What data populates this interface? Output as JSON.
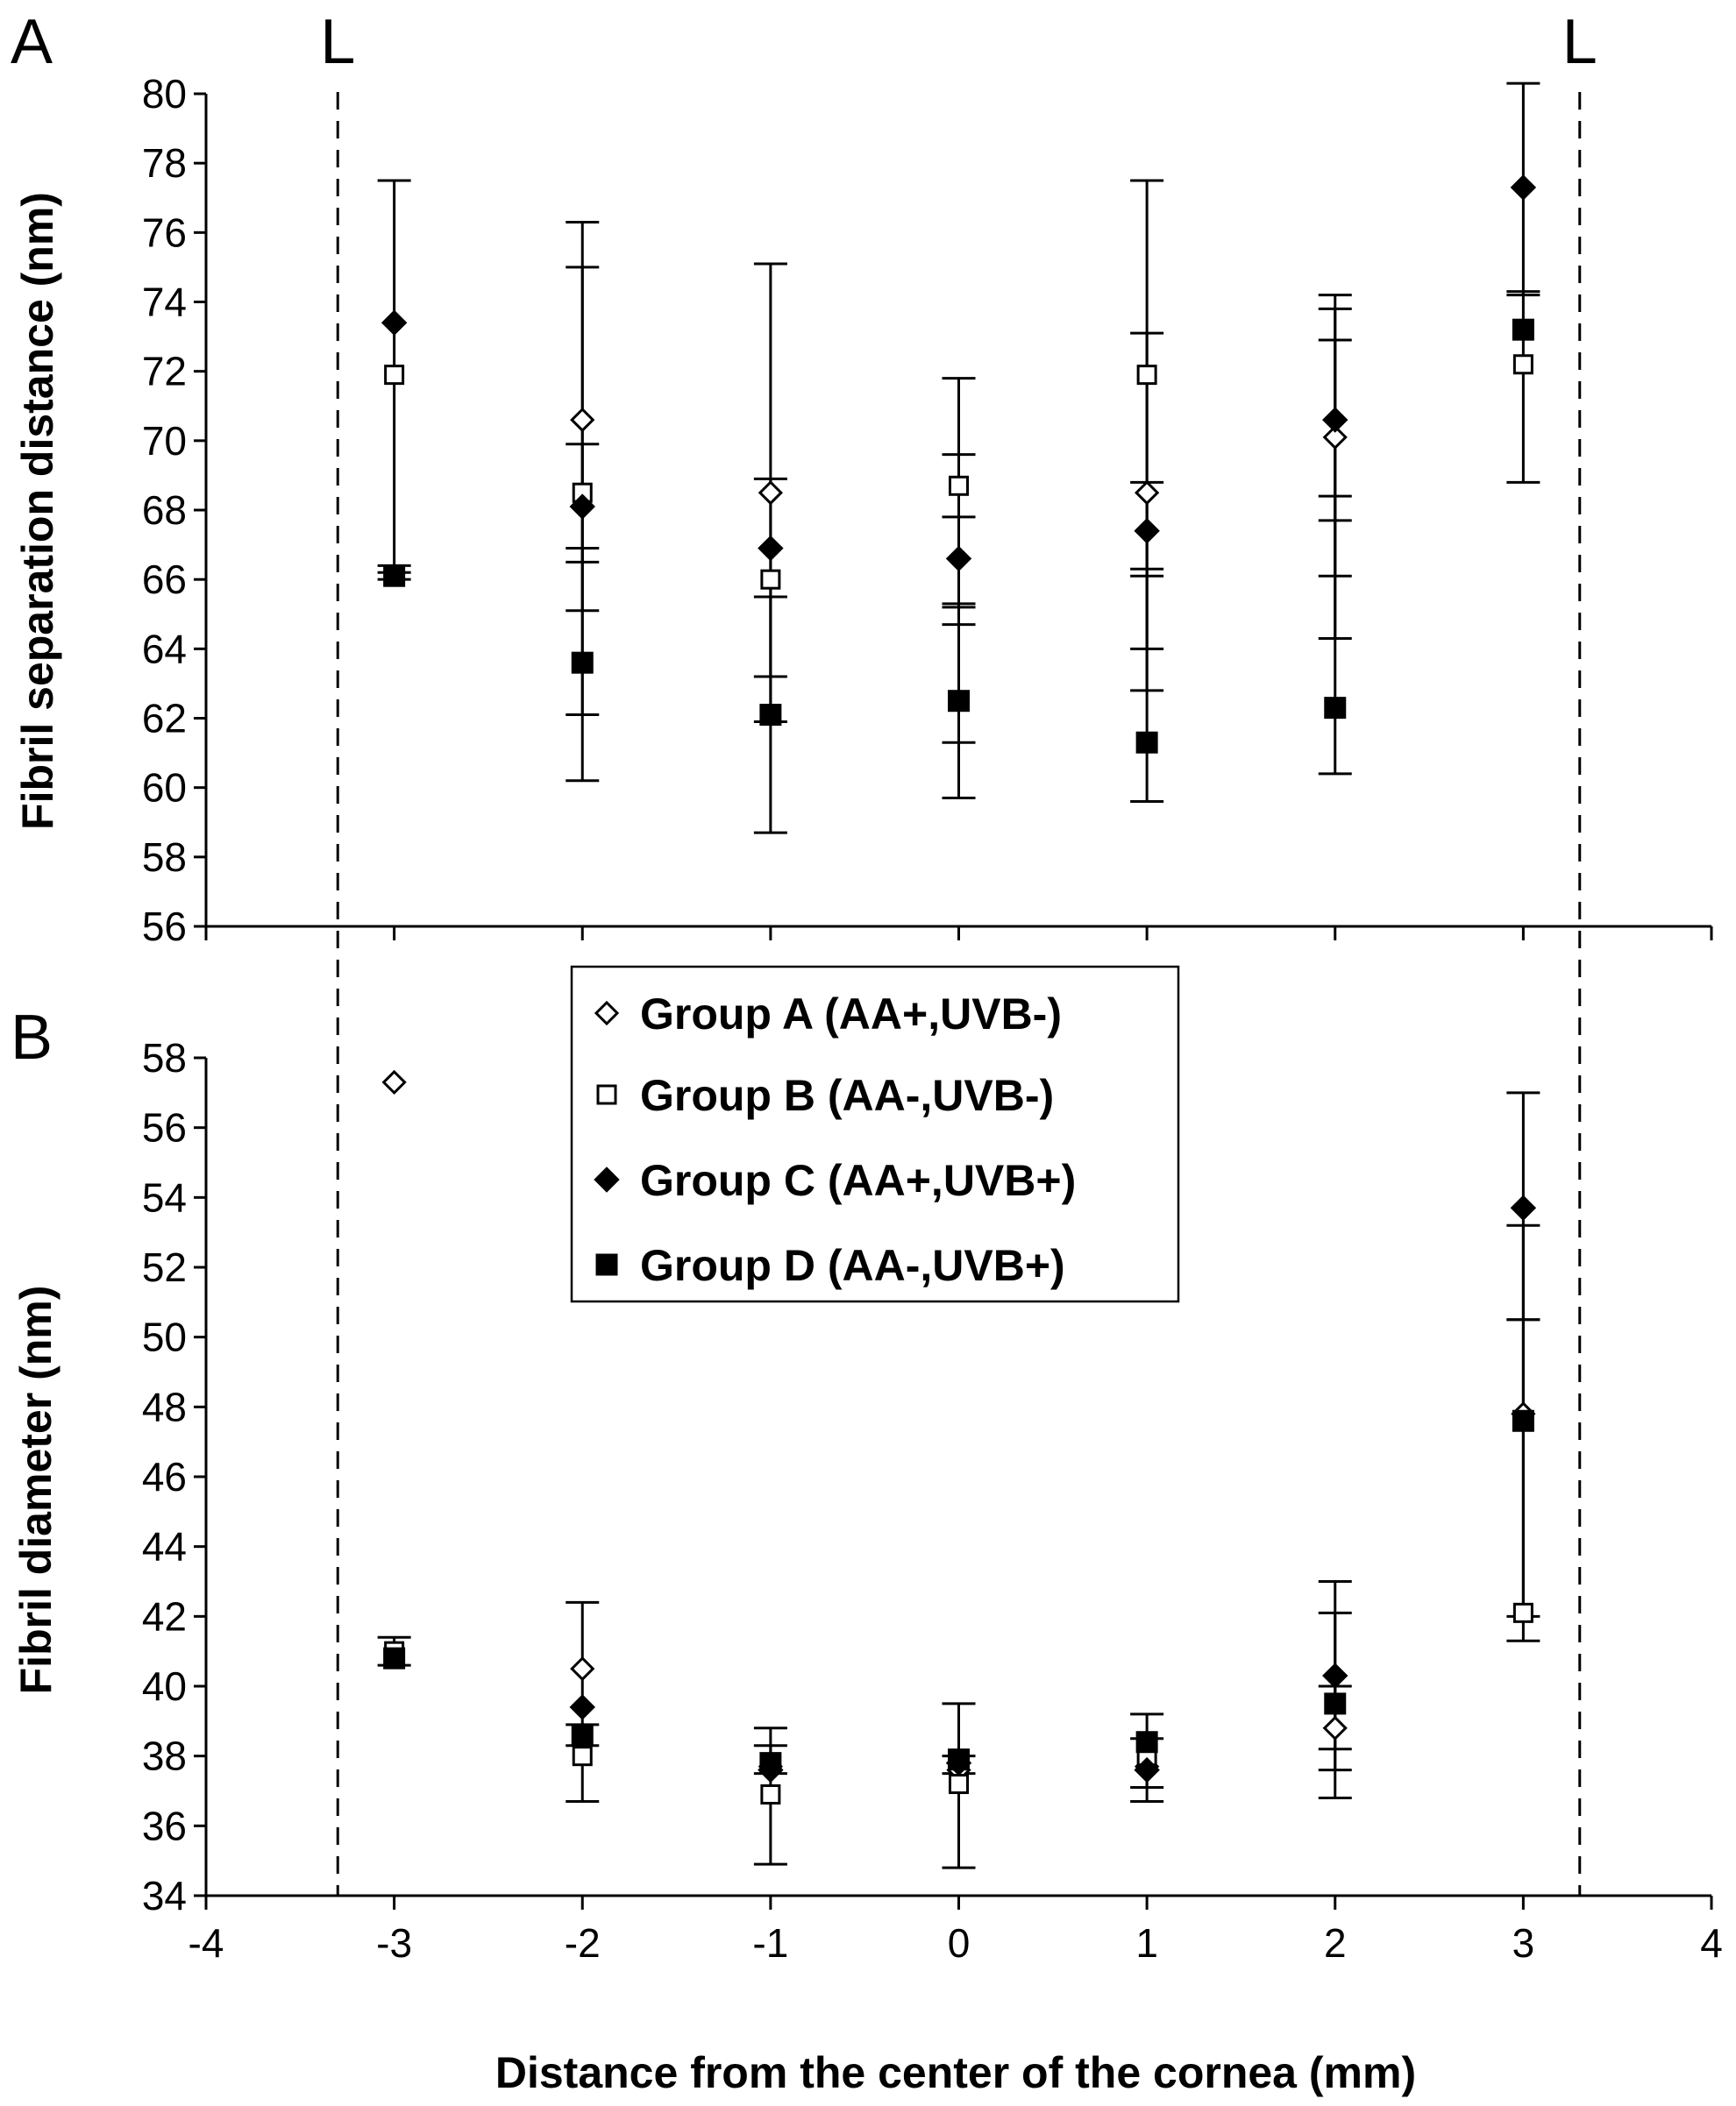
{
  "chart_data": [
    {
      "panel_label": "A",
      "type": "scatter",
      "ylabel": "Fibril separation distance (nm)",
      "xlabel": "",
      "xlim": [
        -4,
        4
      ],
      "ylim": [
        56,
        80
      ],
      "y_ticks": [
        56,
        58,
        60,
        62,
        64,
        66,
        68,
        70,
        72,
        74,
        76,
        78,
        80
      ],
      "boundary_markers": [
        {
          "x": -3.3,
          "label": "L"
        },
        {
          "x": 3.3,
          "label": "L"
        }
      ],
      "grid": false,
      "series": [
        {
          "name": "Group A (AA+,UVB-)",
          "marker": "diamond-open",
          "points": [
            {
              "x": -2,
              "y": 70.6
            },
            {
              "x": -1,
              "y": 68.5
            },
            {
              "x": 1,
              "y": 68.5
            },
            {
              "x": 2,
              "y": 70.1
            }
          ]
        },
        {
          "name": "Group B (AA-,UVB-)",
          "marker": "square-open",
          "points": [
            {
              "x": -3,
              "y": 71.9
            },
            {
              "x": -2,
              "y": 68.5
            },
            {
              "x": -1,
              "y": 66.0
            },
            {
              "x": 0,
              "y": 68.7
            },
            {
              "x": 1,
              "y": 71.9
            },
            {
              "x": 3,
              "y": 72.2
            }
          ]
        },
        {
          "name": "Group C (AA+,UVB+)",
          "marker": "diamond-filled",
          "points": [
            {
              "x": -3,
              "y": 73.4
            },
            {
              "x": -2,
              "y": 68.1
            },
            {
              "x": -1,
              "y": 66.9
            },
            {
              "x": 0,
              "y": 66.6
            },
            {
              "x": 1,
              "y": 67.4
            },
            {
              "x": 2,
              "y": 70.6
            },
            {
              "x": 3,
              "y": 77.3
            }
          ]
        },
        {
          "name": "Group D (AA-,UVB+)",
          "marker": "square-filled",
          "points": [
            {
              "x": -3,
              "y": 66.1
            },
            {
              "x": -2,
              "y": 63.6
            },
            {
              "x": -1,
              "y": 62.1
            },
            {
              "x": 0,
              "y": 62.5
            },
            {
              "x": 1,
              "y": 61.3
            },
            {
              "x": 2,
              "y": 62.3
            },
            {
              "x": 3,
              "y": 73.2
            }
          ]
        }
      ],
      "error_bars": [
        {
          "x": -3,
          "low": 66.2,
          "high": 77.5
        },
        {
          "x": -3,
          "low": 66.0,
          "high": 66.4
        },
        {
          "x": -2,
          "low": 60.2,
          "high": 76.3
        },
        {
          "x": -2,
          "low": 62.1,
          "high": 75.0
        },
        {
          "x": -2,
          "low": 65.1,
          "high": 69.9
        },
        {
          "x": -2,
          "low": 66.5,
          "high": 66.9
        },
        {
          "x": -1,
          "low": 58.7,
          "high": 75.1
        },
        {
          "x": -1,
          "low": 61.9,
          "high": 68.9
        },
        {
          "x": -1,
          "low": 63.2,
          "high": 65.5
        },
        {
          "x": 0,
          "low": 59.7,
          "high": 71.8
        },
        {
          "x": 0,
          "low": 61.3,
          "high": 69.6
        },
        {
          "x": 0,
          "low": 64.7,
          "high": 67.8
        },
        {
          "x": 0,
          "low": 65.2,
          "high": 65.3
        },
        {
          "x": 1,
          "low": 59.6,
          "high": 77.5
        },
        {
          "x": 1,
          "low": 62.8,
          "high": 73.1
        },
        {
          "x": 1,
          "low": 64.0,
          "high": 68.8
        },
        {
          "x": 1,
          "low": 66.1,
          "high": 66.3
        },
        {
          "x": 2,
          "low": 60.4,
          "high": 74.2
        },
        {
          "x": 2,
          "low": 64.3,
          "high": 73.8
        },
        {
          "x": 2,
          "low": 66.1,
          "high": 72.9
        },
        {
          "x": 2,
          "low": 67.7,
          "high": 68.4
        },
        {
          "x": 3,
          "low": 68.8,
          "high": 80.3
        },
        {
          "x": 3,
          "low": 74.2,
          "high": 74.3
        }
      ]
    },
    {
      "panel_label": "B",
      "type": "scatter",
      "ylabel": "Fibril diameter (nm)",
      "xlabel": "Distance from the center of the cornea (mm)",
      "xlim": [
        -4,
        4
      ],
      "ylim": [
        34,
        58
      ],
      "x_ticks": [
        -4,
        -3,
        -2,
        -1,
        0,
        1,
        2,
        3,
        4
      ],
      "y_ticks": [
        34,
        36,
        38,
        40,
        42,
        44,
        46,
        48,
        50,
        52,
        54,
        56,
        58
      ],
      "legend_position": "top-center",
      "grid": false,
      "series": [
        {
          "name": "Group A (AA+,UVB-)",
          "marker": "diamond-open",
          "points": [
            {
              "x": -3,
              "y": 57.3
            },
            {
              "x": -2,
              "y": 40.5
            },
            {
              "x": -1,
              "y": 37.7
            },
            {
              "x": 0,
              "y": 37.6
            },
            {
              "x": 1,
              "y": 37.7
            },
            {
              "x": 2,
              "y": 38.8
            },
            {
              "x": 3,
              "y": 47.8
            }
          ]
        },
        {
          "name": "Group B (AA-,UVB-)",
          "marker": "square-open",
          "points": [
            {
              "x": -3,
              "y": 41.0
            },
            {
              "x": -2,
              "y": 38.0
            },
            {
              "x": -1,
              "y": 36.9
            },
            {
              "x": 0,
              "y": 37.2
            },
            {
              "x": 1,
              "y": 38.0
            },
            {
              "x": 3,
              "y": 42.1
            }
          ]
        },
        {
          "name": "Group C (AA+,UVB+)",
          "marker": "diamond-filled",
          "points": [
            {
              "x": -2,
              "y": 39.4
            },
            {
              "x": -1,
              "y": 37.6
            },
            {
              "x": 0,
              "y": 37.8
            },
            {
              "x": 1,
              "y": 37.6
            },
            {
              "x": 2,
              "y": 40.3
            },
            {
              "x": 3,
              "y": 53.7
            }
          ]
        },
        {
          "name": "Group D (AA-,UVB+)",
          "marker": "square-filled",
          "points": [
            {
              "x": -3,
              "y": 40.8
            },
            {
              "x": -2,
              "y": 38.6
            },
            {
              "x": -1,
              "y": 37.8
            },
            {
              "x": 0,
              "y": 37.9
            },
            {
              "x": 1,
              "y": 38.4
            },
            {
              "x": 2,
              "y": 39.5
            },
            {
              "x": 3,
              "y": 47.6
            }
          ]
        }
      ],
      "error_bars": [
        {
          "x": -3,
          "low": 40.6,
          "high": 41.4
        },
        {
          "x": -2,
          "low": 36.7,
          "high": 42.4
        },
        {
          "x": -2,
          "low": 38.3,
          "high": 38.9
        },
        {
          "x": -1,
          "low": 34.9,
          "high": 38.8
        },
        {
          "x": -1,
          "low": 37.5,
          "high": 38.3
        },
        {
          "x": 0,
          "low": 34.8,
          "high": 39.5
        },
        {
          "x": 0,
          "low": 37.5,
          "high": 38.0
        },
        {
          "x": 1,
          "low": 36.7,
          "high": 39.2
        },
        {
          "x": 1,
          "low": 37.1,
          "high": 38.5
        },
        {
          "x": 2,
          "low": 36.8,
          "high": 43.0
        },
        {
          "x": 2,
          "low": 37.6,
          "high": 42.1
        },
        {
          "x": 2,
          "low": 38.2,
          "high": 40.0
        },
        {
          "x": 3,
          "low": 41.3,
          "high": 57.0
        },
        {
          "x": 3,
          "low": 42.0,
          "high": 53.2
        },
        {
          "x": 3,
          "low": 50.5,
          "high": 50.5
        }
      ]
    }
  ]
}
